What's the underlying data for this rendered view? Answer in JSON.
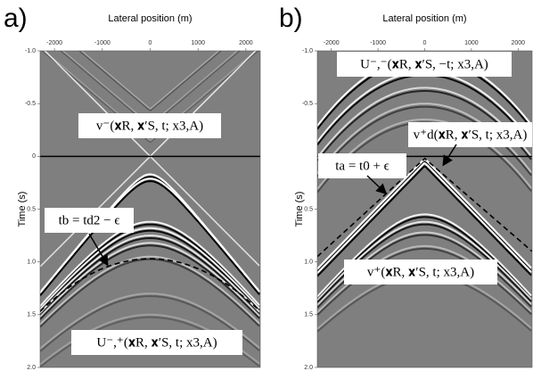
{
  "chart_data": [
    {
      "type": "image",
      "panel_label": "a)",
      "x_label": "Lateral position (m)",
      "y_label": "Time (s)",
      "xlim": [
        -2300,
        2300
      ],
      "ylim": [
        -1,
        2
      ],
      "xticks": [
        -2000,
        -1000,
        0,
        1000,
        2000
      ],
      "yticks": [
        {
          "value": -1,
          "label": "-1.0"
        },
        {
          "value": -0.5,
          "label": "-0.5"
        },
        0,
        {
          "value": 0.5,
          "label": "0.5"
        },
        {
          "value": 1,
          "label": "1.0"
        },
        {
          "value": 1.5,
          "label": "1.5"
        },
        {
          "value": 2,
          "label": "2.0"
        }
      ],
      "annotations": [
        "v⁻(𝐱R, 𝐱′S, t; x3,A)",
        "tb = td2 − ϵ",
        "U⁻,⁺(𝐱R, 𝐱′S, t; x3,A)"
      ]
    },
    {
      "type": "image",
      "panel_label": "b)",
      "x_label": "Lateral position (m)",
      "y_label": "Time (s)",
      "xlim": [
        -2300,
        2300
      ],
      "ylim": [
        -1,
        2
      ],
      "xticks": [
        -2000,
        -1000,
        0,
        1000,
        2000
      ],
      "yticks": [
        {
          "value": -1,
          "label": "-1.0"
        },
        {
          "value": -0.5,
          "label": "-0.5"
        },
        {
          "value": 0.5,
          "label": "0.5"
        },
        {
          "value": 1,
          "label": "1.0"
        },
        {
          "value": 1.5,
          "label": "1.5"
        },
        {
          "value": 2,
          "label": "2.0"
        }
      ],
      "annotations": [
        "U⁻,⁻(𝐱R, 𝐱′S, −t; x3,A)",
        "v⁺d(𝐱R, 𝐱′S, t; x3,A)",
        "ta = t0 + ϵ",
        "v⁺(𝐱R, 𝐱′S, t; x3,A)"
      ]
    }
  ]
}
